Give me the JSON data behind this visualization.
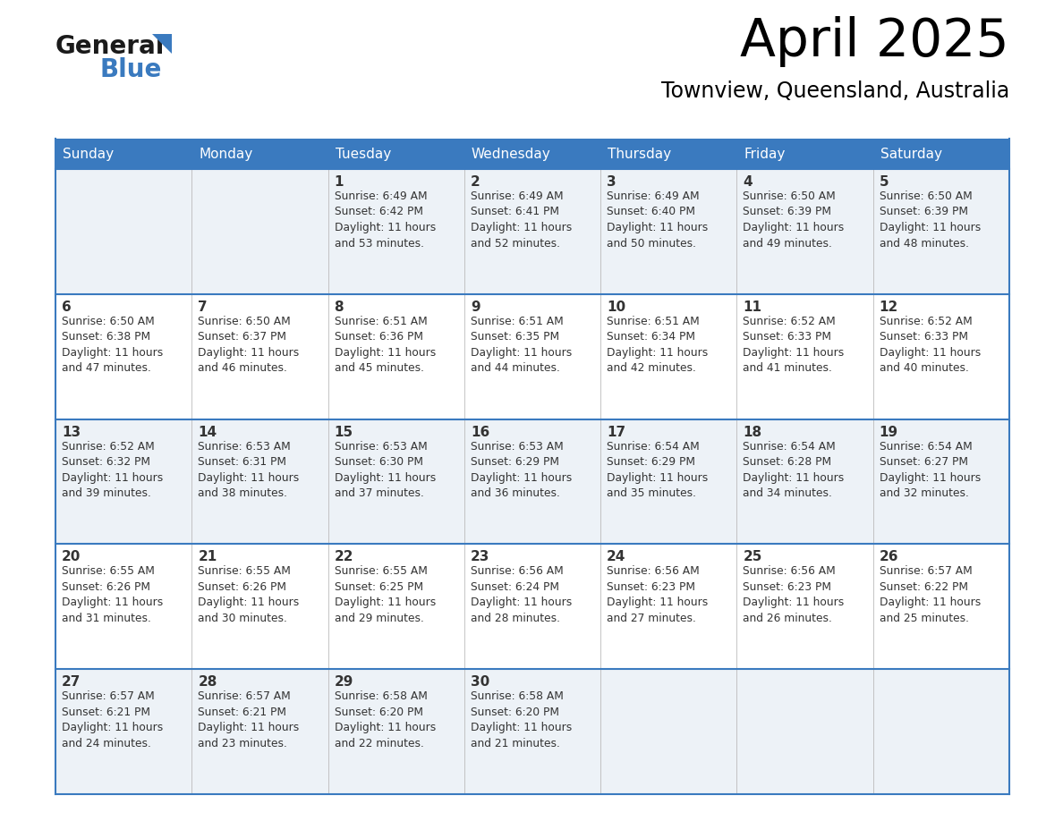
{
  "title": "April 2025",
  "subtitle": "Townview, Queensland, Australia",
  "header_bg": "#3a7abf",
  "header_text_color": "#ffffff",
  "days_of_week": [
    "Sunday",
    "Monday",
    "Tuesday",
    "Wednesday",
    "Thursday",
    "Friday",
    "Saturday"
  ],
  "row_bg_even": "#edf2f7",
  "row_bg_odd": "#ffffff",
  "border_color": "#3a7abf",
  "text_color": "#333333",
  "calendar": [
    [
      {
        "day": "",
        "text": ""
      },
      {
        "day": "",
        "text": ""
      },
      {
        "day": "1",
        "text": "Sunrise: 6:49 AM\nSunset: 6:42 PM\nDaylight: 11 hours\nand 53 minutes."
      },
      {
        "day": "2",
        "text": "Sunrise: 6:49 AM\nSunset: 6:41 PM\nDaylight: 11 hours\nand 52 minutes."
      },
      {
        "day": "3",
        "text": "Sunrise: 6:49 AM\nSunset: 6:40 PM\nDaylight: 11 hours\nand 50 minutes."
      },
      {
        "day": "4",
        "text": "Sunrise: 6:50 AM\nSunset: 6:39 PM\nDaylight: 11 hours\nand 49 minutes."
      },
      {
        "day": "5",
        "text": "Sunrise: 6:50 AM\nSunset: 6:39 PM\nDaylight: 11 hours\nand 48 minutes."
      }
    ],
    [
      {
        "day": "6",
        "text": "Sunrise: 6:50 AM\nSunset: 6:38 PM\nDaylight: 11 hours\nand 47 minutes."
      },
      {
        "day": "7",
        "text": "Sunrise: 6:50 AM\nSunset: 6:37 PM\nDaylight: 11 hours\nand 46 minutes."
      },
      {
        "day": "8",
        "text": "Sunrise: 6:51 AM\nSunset: 6:36 PM\nDaylight: 11 hours\nand 45 minutes."
      },
      {
        "day": "9",
        "text": "Sunrise: 6:51 AM\nSunset: 6:35 PM\nDaylight: 11 hours\nand 44 minutes."
      },
      {
        "day": "10",
        "text": "Sunrise: 6:51 AM\nSunset: 6:34 PM\nDaylight: 11 hours\nand 42 minutes."
      },
      {
        "day": "11",
        "text": "Sunrise: 6:52 AM\nSunset: 6:33 PM\nDaylight: 11 hours\nand 41 minutes."
      },
      {
        "day": "12",
        "text": "Sunrise: 6:52 AM\nSunset: 6:33 PM\nDaylight: 11 hours\nand 40 minutes."
      }
    ],
    [
      {
        "day": "13",
        "text": "Sunrise: 6:52 AM\nSunset: 6:32 PM\nDaylight: 11 hours\nand 39 minutes."
      },
      {
        "day": "14",
        "text": "Sunrise: 6:53 AM\nSunset: 6:31 PM\nDaylight: 11 hours\nand 38 minutes."
      },
      {
        "day": "15",
        "text": "Sunrise: 6:53 AM\nSunset: 6:30 PM\nDaylight: 11 hours\nand 37 minutes."
      },
      {
        "day": "16",
        "text": "Sunrise: 6:53 AM\nSunset: 6:29 PM\nDaylight: 11 hours\nand 36 minutes."
      },
      {
        "day": "17",
        "text": "Sunrise: 6:54 AM\nSunset: 6:29 PM\nDaylight: 11 hours\nand 35 minutes."
      },
      {
        "day": "18",
        "text": "Sunrise: 6:54 AM\nSunset: 6:28 PM\nDaylight: 11 hours\nand 34 minutes."
      },
      {
        "day": "19",
        "text": "Sunrise: 6:54 AM\nSunset: 6:27 PM\nDaylight: 11 hours\nand 32 minutes."
      }
    ],
    [
      {
        "day": "20",
        "text": "Sunrise: 6:55 AM\nSunset: 6:26 PM\nDaylight: 11 hours\nand 31 minutes."
      },
      {
        "day": "21",
        "text": "Sunrise: 6:55 AM\nSunset: 6:26 PM\nDaylight: 11 hours\nand 30 minutes."
      },
      {
        "day": "22",
        "text": "Sunrise: 6:55 AM\nSunset: 6:25 PM\nDaylight: 11 hours\nand 29 minutes."
      },
      {
        "day": "23",
        "text": "Sunrise: 6:56 AM\nSunset: 6:24 PM\nDaylight: 11 hours\nand 28 minutes."
      },
      {
        "day": "24",
        "text": "Sunrise: 6:56 AM\nSunset: 6:23 PM\nDaylight: 11 hours\nand 27 minutes."
      },
      {
        "day": "25",
        "text": "Sunrise: 6:56 AM\nSunset: 6:23 PM\nDaylight: 11 hours\nand 26 minutes."
      },
      {
        "day": "26",
        "text": "Sunrise: 6:57 AM\nSunset: 6:22 PM\nDaylight: 11 hours\nand 25 minutes."
      }
    ],
    [
      {
        "day": "27",
        "text": "Sunrise: 6:57 AM\nSunset: 6:21 PM\nDaylight: 11 hours\nand 24 minutes."
      },
      {
        "day": "28",
        "text": "Sunrise: 6:57 AM\nSunset: 6:21 PM\nDaylight: 11 hours\nand 23 minutes."
      },
      {
        "day": "29",
        "text": "Sunrise: 6:58 AM\nSunset: 6:20 PM\nDaylight: 11 hours\nand 22 minutes."
      },
      {
        "day": "30",
        "text": "Sunrise: 6:58 AM\nSunset: 6:20 PM\nDaylight: 11 hours\nand 21 minutes."
      },
      {
        "day": "",
        "text": ""
      },
      {
        "day": "",
        "text": ""
      },
      {
        "day": "",
        "text": ""
      }
    ]
  ],
  "logo_general_color": "#1a1a1a",
  "logo_blue_color": "#3a7abf",
  "logo_triangle_color": "#3a7abf"
}
